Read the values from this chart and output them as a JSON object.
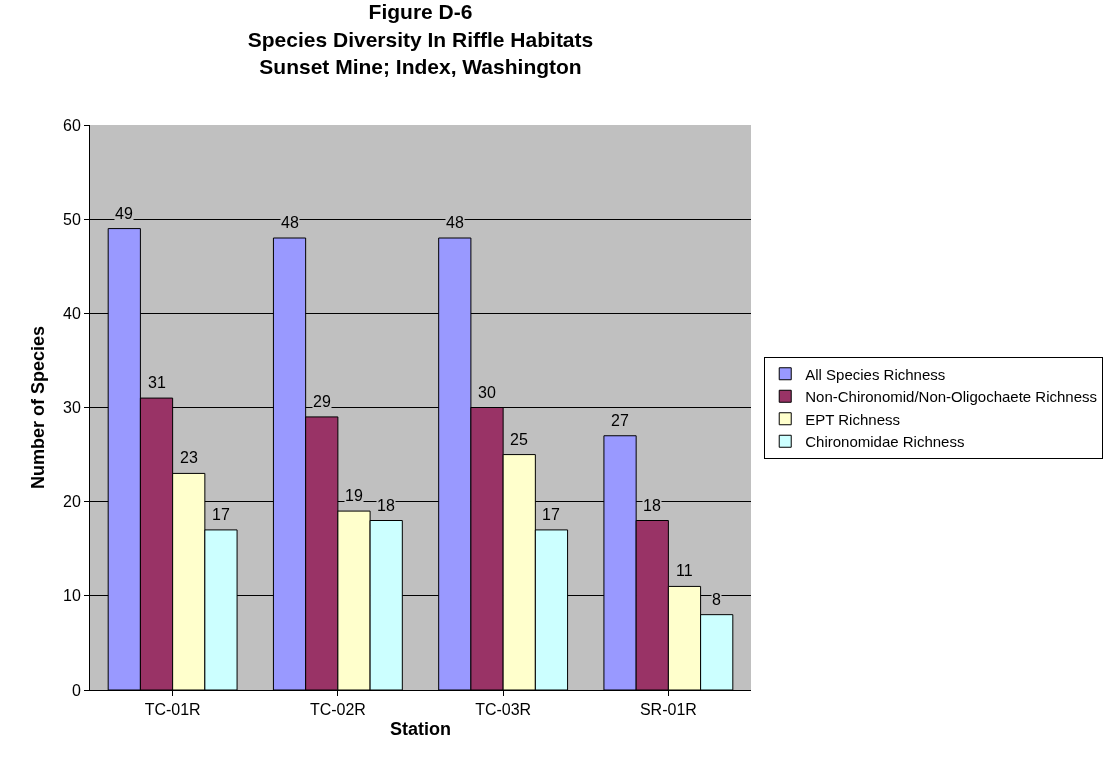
{
  "chart_data": {
    "type": "bar",
    "title": "Figure D-6\nSpecies Diversity In Riffle Habitats\nSunset Mine; Index, Washington",
    "xlabel": "Station",
    "ylabel": "Number of Species",
    "categories": [
      "TC-01R",
      "TC-02R",
      "TC-03R",
      "SR-01R"
    ],
    "series": [
      {
        "name": "All Species Richness",
        "color": "#9999ff",
        "values": [
          49,
          48,
          48,
          27
        ]
      },
      {
        "name": "Non-Chironomid/Non-Oligochaete Richness",
        "color": "#993366",
        "values": [
          31,
          29,
          30,
          18
        ]
      },
      {
        "name": "EPT Richness",
        "color": "#ffffcc",
        "values": [
          23,
          19,
          25,
          11
        ]
      },
      {
        "name": "Chironomidae Richness",
        "color": "#ccffff",
        "values": [
          17,
          18,
          17,
          8
        ]
      }
    ],
    "ylim": [
      0,
      60
    ],
    "yticks": [
      0,
      10,
      20,
      30,
      40,
      50,
      60
    ],
    "grid": "y",
    "legend": "right",
    "data_labels": true
  }
}
